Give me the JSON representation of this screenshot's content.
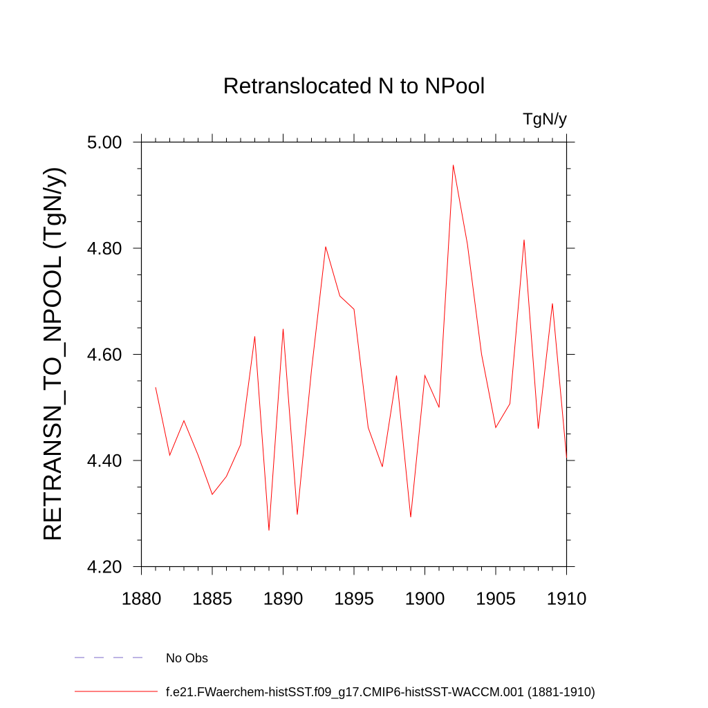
{
  "chart_data": {
    "type": "line",
    "title": "Retranslocated N to NPool",
    "units": "TgN/y",
    "ylabel": "RETRANSN_TO_NPOOL  (TgN/y)",
    "xlabel": "",
    "xlim": [
      1880,
      1910
    ],
    "ylim": [
      4.2,
      5.0
    ],
    "xticks": [
      1880,
      1885,
      1890,
      1895,
      1900,
      1905,
      1910
    ],
    "yticks": [
      4.2,
      4.4,
      4.6,
      4.8,
      5.0
    ],
    "ytick_labels": [
      "4.20",
      "4.40",
      "4.60",
      "4.80",
      "5.00"
    ],
    "grid": false,
    "legend_position": "bottom-left",
    "series": [
      {
        "name": "f.e21.FWaerchem-histSST.f09_g17.CMIP6-histSST-WACCM.001 (1881-1910)",
        "color": "#ff0000",
        "line_style": "solid",
        "x": [
          1881,
          1882,
          1883,
          1884,
          1885,
          1886,
          1887,
          1888,
          1889,
          1890,
          1891,
          1892,
          1893,
          1894,
          1895,
          1896,
          1897,
          1898,
          1899,
          1900,
          1901,
          1902,
          1903,
          1904,
          1905,
          1906,
          1907,
          1908,
          1909,
          1910
        ],
        "y": [
          4.538,
          4.41,
          4.475,
          4.41,
          4.336,
          4.37,
          4.43,
          4.634,
          4.268,
          4.648,
          4.298,
          4.57,
          4.803,
          4.71,
          4.685,
          4.462,
          4.388,
          4.56,
          4.293,
          4.56,
          4.5,
          4.957,
          4.808,
          4.6,
          4.462,
          4.507,
          4.816,
          4.46,
          4.696,
          4.405
        ]
      }
    ],
    "legend": [
      {
        "label": "No Obs",
        "color": "#7b68c8",
        "line_style": "dashed"
      },
      {
        "label": "f.e21.FWaerchem-histSST.f09_g17.CMIP6-histSST-WACCM.001 (1881-1910)",
        "color": "#ff0000",
        "line_style": "solid"
      }
    ]
  }
}
